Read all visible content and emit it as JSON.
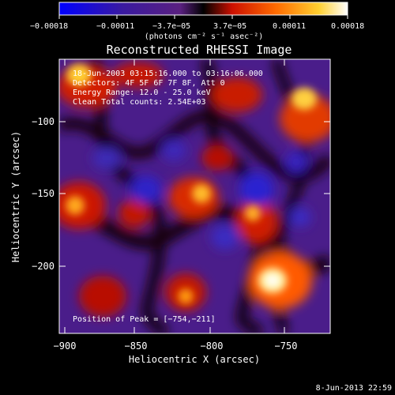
{
  "colorbar": {
    "tick_labels": [
      "−0.00018",
      "−0.00011",
      "−3.7e−05",
      "3.7e−05",
      "0.00011",
      "0.00018"
    ],
    "units": "(photons cm⁻² s⁻¹ asec⁻²)",
    "colors": [
      "#0000ff",
      "#3a1a9a",
      "#6a2aa0",
      "#000000",
      "#cc1100",
      "#ff7700",
      "#ffcc33",
      "#ffffff"
    ]
  },
  "plot": {
    "title": "Reconstructed RHESSI Image",
    "info_lines": [
      "18-Jun-2003 03:15:16.000 to 03:16:06.000",
      "Detectors: 4F 5F 6F 7F 8F, Att 0",
      "Energy Range: 12.0 - 25.0 keV",
      "Clean    Total counts: 2.54E+03"
    ],
    "peak_label": "Position of Peak = [−754,−211]",
    "xlabel": "Heliocentric X (arcsec)",
    "ylabel": "Heliocentric Y (arcsec)",
    "x_ticks": [
      "−900",
      "−850",
      "−800",
      "−750"
    ],
    "y_ticks": [
      "−100",
      "−150",
      "−200"
    ]
  },
  "footer": {
    "timestamp": "8-Jun-2013 22:59"
  }
}
